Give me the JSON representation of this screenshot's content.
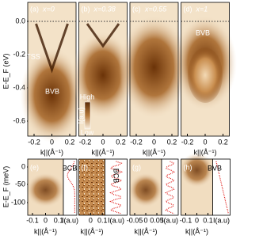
{
  "figure": {
    "y_axis_top": {
      "label": "E-E_F (eV)",
      "ticks": [
        "0.0",
        "-0.2",
        "-0.4",
        "-0.6"
      ]
    },
    "panels_top": [
      {
        "tag": "(a)",
        "title": "x=0",
        "xticks": [
          "-0.2",
          "0",
          "0.2"
        ],
        "xlabel": "k||(Å⁻¹)",
        "annotations": [
          "TSS",
          "BVB"
        ]
      },
      {
        "tag": "(b)",
        "title": "x=0.38",
        "xticks": [
          "-0.2",
          "0",
          "0.2"
        ],
        "xlabel": "k||(Å⁻¹)",
        "annotations": []
      },
      {
        "tag": "(c)",
        "title": "x=0.55",
        "xticks": [
          "-0.2",
          "0",
          "0.2"
        ],
        "xlabel": "k||(Å⁻¹)",
        "annotations": []
      },
      {
        "tag": "(d)",
        "title": "x=1",
        "xticks": [
          "-0.2",
          "0",
          "0.2"
        ],
        "xlabel": "k||(Å⁻¹)",
        "annotations": [
          "BVB"
        ]
      }
    ],
    "colorbar": {
      "label": "I(a.u)",
      "high": "High",
      "low": "Low"
    },
    "y_axis_bottom": {
      "label": "E-E_F (meV)",
      "ticks": [
        "0",
        "-50",
        "-100"
      ]
    },
    "panels_bottom": [
      {
        "tag": "(e)",
        "annotations": [
          "BCB"
        ],
        "profile_label": "I(a.u)",
        "xticks": [
          "-0.1",
          "0",
          "0.1"
        ],
        "xlabel": "k||(Å⁻¹)"
      },
      {
        "tag": "(f)",
        "annotations": [
          "BCB"
        ],
        "profile_label": "I(a.u)",
        "xticks": [
          "0",
          "0.1"
        ],
        "xlabel": "k||(Å⁻¹)"
      },
      {
        "tag": "(g)",
        "annotations": [],
        "profile_label": "I(a.u)",
        "xticks": [
          "-0.05",
          "0",
          "0.05"
        ],
        "xlabel": "k||(Å⁻¹)"
      },
      {
        "tag": "(h)",
        "annotations": [
          "BVB"
        ],
        "profile_label": "I(a.u)",
        "xticks": [
          "-0.1",
          "0",
          "0.1"
        ],
        "xlabel": "k||(Å⁻¹)"
      }
    ]
  }
}
